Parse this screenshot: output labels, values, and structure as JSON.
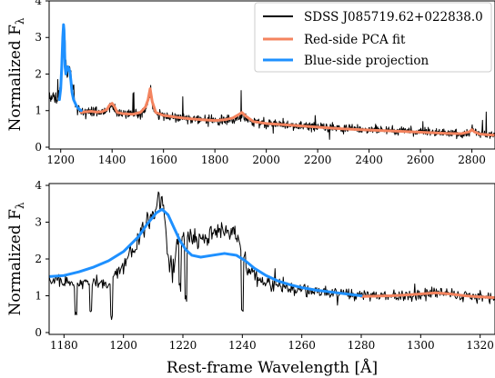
{
  "chart_data": [
    {
      "type": "line",
      "xlabel": "",
      "ylabel": "Normalized F",
      "ylabel_subscript": "λ",
      "xlim": [
        1155,
        2890
      ],
      "ylim": [
        -0.05,
        4.0
      ],
      "xticks": [
        1200,
        1400,
        1600,
        1800,
        2000,
        2200,
        2400,
        2600,
        2800
      ],
      "yticks": [
        0,
        1,
        2,
        3,
        4
      ],
      "grid": false,
      "legend": {
        "placement": "top-right",
        "entries": [
          {
            "label": "SDSS J085719.62+022838.0",
            "color": "#000000"
          },
          {
            "label": "Red-side PCA fit",
            "color": "#f4845f"
          },
          {
            "label": "Blue-side projection",
            "color": "#1e90ff"
          }
        ]
      },
      "series": [
        {
          "name": "SDSS J085719.62+022838.0",
          "color": "#000000",
          "kind": "noisy",
          "x_range": [
            1155,
            2890
          ],
          "continuum": [
            [
              1155,
              1.45
            ],
            [
              1180,
              1.25
            ],
            [
              1195,
              1.4
            ],
            [
              1205,
              2.2
            ],
            [
              1212,
              3.4
            ],
            [
              1218,
              2.6
            ],
            [
              1225,
              1.9
            ],
            [
              1235,
              2.3
            ],
            [
              1242,
              1.7
            ],
            [
              1260,
              1.1
            ],
            [
              1280,
              0.95
            ],
            [
              1320,
              0.95
            ],
            [
              1360,
              0.95
            ],
            [
              1380,
              1.0
            ],
            [
              1400,
              1.1
            ],
            [
              1420,
              0.95
            ],
            [
              1500,
              0.9
            ],
            [
              1530,
              1.05
            ],
            [
              1548,
              1.55
            ],
            [
              1565,
              0.95
            ],
            [
              1600,
              0.85
            ],
            [
              1700,
              0.78
            ],
            [
              1800,
              0.72
            ],
            [
              1860,
              0.75
            ],
            [
              1905,
              0.85
            ],
            [
              1950,
              0.68
            ],
            [
              2100,
              0.6
            ],
            [
              2300,
              0.52
            ],
            [
              2500,
              0.45
            ],
            [
              2700,
              0.38
            ],
            [
              2780,
              0.38
            ],
            [
              2800,
              0.5
            ],
            [
              2820,
              0.38
            ],
            [
              2890,
              0.33
            ]
          ],
          "noise": 0.12
        },
        {
          "name": "Red-side PCA fit",
          "color": "#f4845f",
          "x": [
            1280,
            1300,
            1320,
            1340,
            1360,
            1380,
            1390,
            1400,
            1410,
            1420,
            1440,
            1480,
            1510,
            1530,
            1540,
            1548,
            1556,
            1570,
            1600,
            1650,
            1700,
            1750,
            1800,
            1840,
            1870,
            1890,
            1905,
            1920,
            1950,
            2000,
            2100,
            2200,
            2300,
            2400,
            2500,
            2600,
            2700,
            2760,
            2790,
            2800,
            2810,
            2830,
            2860,
            2890
          ],
          "y": [
            0.95,
            0.97,
            0.98,
            0.96,
            0.97,
            1.03,
            1.15,
            1.2,
            1.1,
            0.95,
            0.92,
            0.9,
            0.95,
            1.1,
            1.3,
            1.6,
            1.25,
            0.95,
            0.87,
            0.82,
            0.78,
            0.75,
            0.73,
            0.75,
            0.8,
            0.88,
            0.95,
            0.85,
            0.7,
            0.65,
            0.6,
            0.55,
            0.5,
            0.47,
            0.44,
            0.41,
            0.38,
            0.37,
            0.42,
            0.48,
            0.42,
            0.36,
            0.34,
            0.33
          ]
        },
        {
          "name": "Blue-side projection",
          "color": "#1e90ff",
          "x": [
            1195,
            1200,
            1204,
            1208,
            1211,
            1213,
            1215,
            1217,
            1220,
            1224,
            1228,
            1232,
            1236,
            1240,
            1244,
            1250,
            1260,
            1270,
            1280
          ],
          "y": [
            1.3,
            1.6,
            2.2,
            3.0,
            3.35,
            3.2,
            2.7,
            2.2,
            2.0,
            2.1,
            2.2,
            2.15,
            2.05,
            1.8,
            1.5,
            1.3,
            1.15,
            1.05,
            1.0
          ]
        }
      ]
    },
    {
      "type": "line",
      "xlabel": "Rest-frame Wavelength [Å]",
      "ylabel": "Normalized F",
      "ylabel_subscript": "λ",
      "xlim": [
        1175,
        1325
      ],
      "ylim": [
        -0.05,
        4.05
      ],
      "xticks": [
        1180,
        1200,
        1220,
        1240,
        1260,
        1280,
        1300,
        1320
      ],
      "yticks": [
        0,
        1,
        2,
        3,
        4
      ],
      "grid": false,
      "series": [
        {
          "name": "SDSS J085719.62+022838.0",
          "color": "#000000",
          "kind": "noisy",
          "x_range": [
            1175,
            1325
          ],
          "continuum": [
            [
              1175,
              1.5
            ],
            [
              1180,
              1.4
            ],
            [
              1185,
              1.3
            ],
            [
              1190,
              1.4
            ],
            [
              1195,
              1.35
            ],
            [
              1200,
              1.8
            ],
            [
              1204,
              2.4
            ],
            [
              1208,
              3.0
            ],
            [
              1211,
              3.5
            ],
            [
              1213,
              3.6
            ],
            [
              1215,
              2.2
            ],
            [
              1216,
              1.0
            ],
            [
              1218,
              2.5
            ],
            [
              1220,
              2.7
            ],
            [
              1222,
              2.6
            ],
            [
              1224,
              2.5
            ],
            [
              1228,
              2.6
            ],
            [
              1232,
              2.8
            ],
            [
              1236,
              2.8
            ],
            [
              1238,
              2.7
            ],
            [
              1240,
              2.2
            ],
            [
              1242,
              1.7
            ],
            [
              1246,
              1.4
            ],
            [
              1250,
              1.3
            ],
            [
              1255,
              1.2
            ],
            [
              1260,
              1.15
            ],
            [
              1265,
              1.1
            ],
            [
              1270,
              1.08
            ],
            [
              1275,
              1.05
            ],
            [
              1280,
              1.02
            ],
            [
              1290,
              1.0
            ],
            [
              1300,
              1.02
            ],
            [
              1305,
              1.1
            ],
            [
              1310,
              1.05
            ],
            [
              1320,
              0.97
            ],
            [
              1325,
              0.95
            ]
          ],
          "dips": [
            [
              1184,
              0.55
            ],
            [
              1189,
              0.6
            ],
            [
              1196,
              0.4
            ],
            [
              1216,
              1.8
            ],
            [
              1219,
              1.3
            ],
            [
              1221,
              0.9
            ],
            [
              1240,
              0.5
            ]
          ],
          "noise": 0.12
        },
        {
          "name": "Red-side PCA fit",
          "color": "#f4845f",
          "x": [
            1280,
            1285,
            1290,
            1295,
            1300,
            1305,
            1310,
            1315,
            1320,
            1325
          ],
          "y": [
            0.98,
            0.99,
            1.0,
            1.02,
            1.05,
            1.08,
            1.05,
            1.0,
            0.97,
            0.95
          ]
        },
        {
          "name": "Blue-side projection",
          "color": "#1e90ff",
          "x": [
            1175,
            1180,
            1185,
            1190,
            1195,
            1200,
            1205,
            1208,
            1211,
            1213,
            1215,
            1217,
            1219,
            1221,
            1223,
            1226,
            1230,
            1234,
            1238,
            1241,
            1244,
            1248,
            1252,
            1256,
            1260,
            1265,
            1270,
            1275,
            1280
          ],
          "y": [
            1.52,
            1.55,
            1.65,
            1.78,
            1.95,
            2.2,
            2.6,
            2.95,
            3.25,
            3.35,
            3.2,
            2.85,
            2.5,
            2.25,
            2.1,
            2.05,
            2.1,
            2.15,
            2.1,
            1.95,
            1.75,
            1.55,
            1.4,
            1.3,
            1.22,
            1.15,
            1.1,
            1.05,
            1.0
          ]
        }
      ]
    }
  ]
}
